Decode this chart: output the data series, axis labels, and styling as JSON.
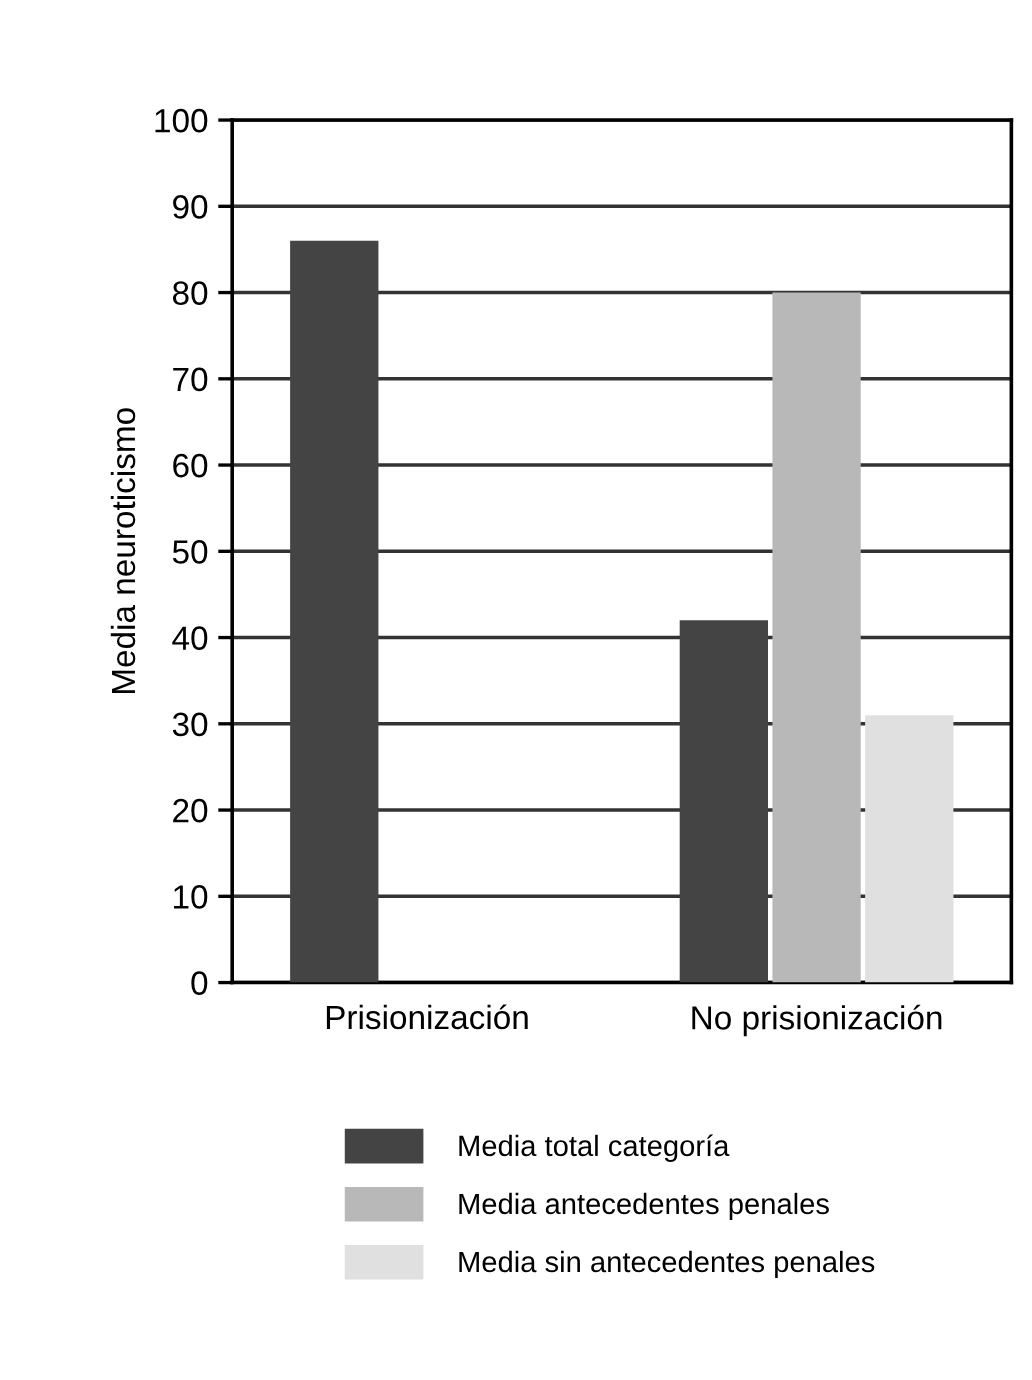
{
  "chart_data": {
    "type": "bar",
    "ylabel": "Media neuroticismo",
    "categories": [
      "Prisionización",
      "No prisionización"
    ],
    "series": [
      {
        "name": "Media total categoría",
        "color": "#444444",
        "values": [
          86,
          42
        ]
      },
      {
        "name": "Media antecedentes penales",
        "color": "#b8b8b8",
        "values": [
          null,
          80
        ]
      },
      {
        "name": "Media sin antecedentes penales",
        "color": "#e0e0e0",
        "values": [
          null,
          31
        ]
      }
    ],
    "ylim": [
      0,
      100
    ],
    "yticks": [
      0,
      10,
      20,
      30,
      40,
      50,
      60,
      70,
      80,
      90,
      100
    ],
    "grid": "y",
    "legend": "bottom"
  }
}
